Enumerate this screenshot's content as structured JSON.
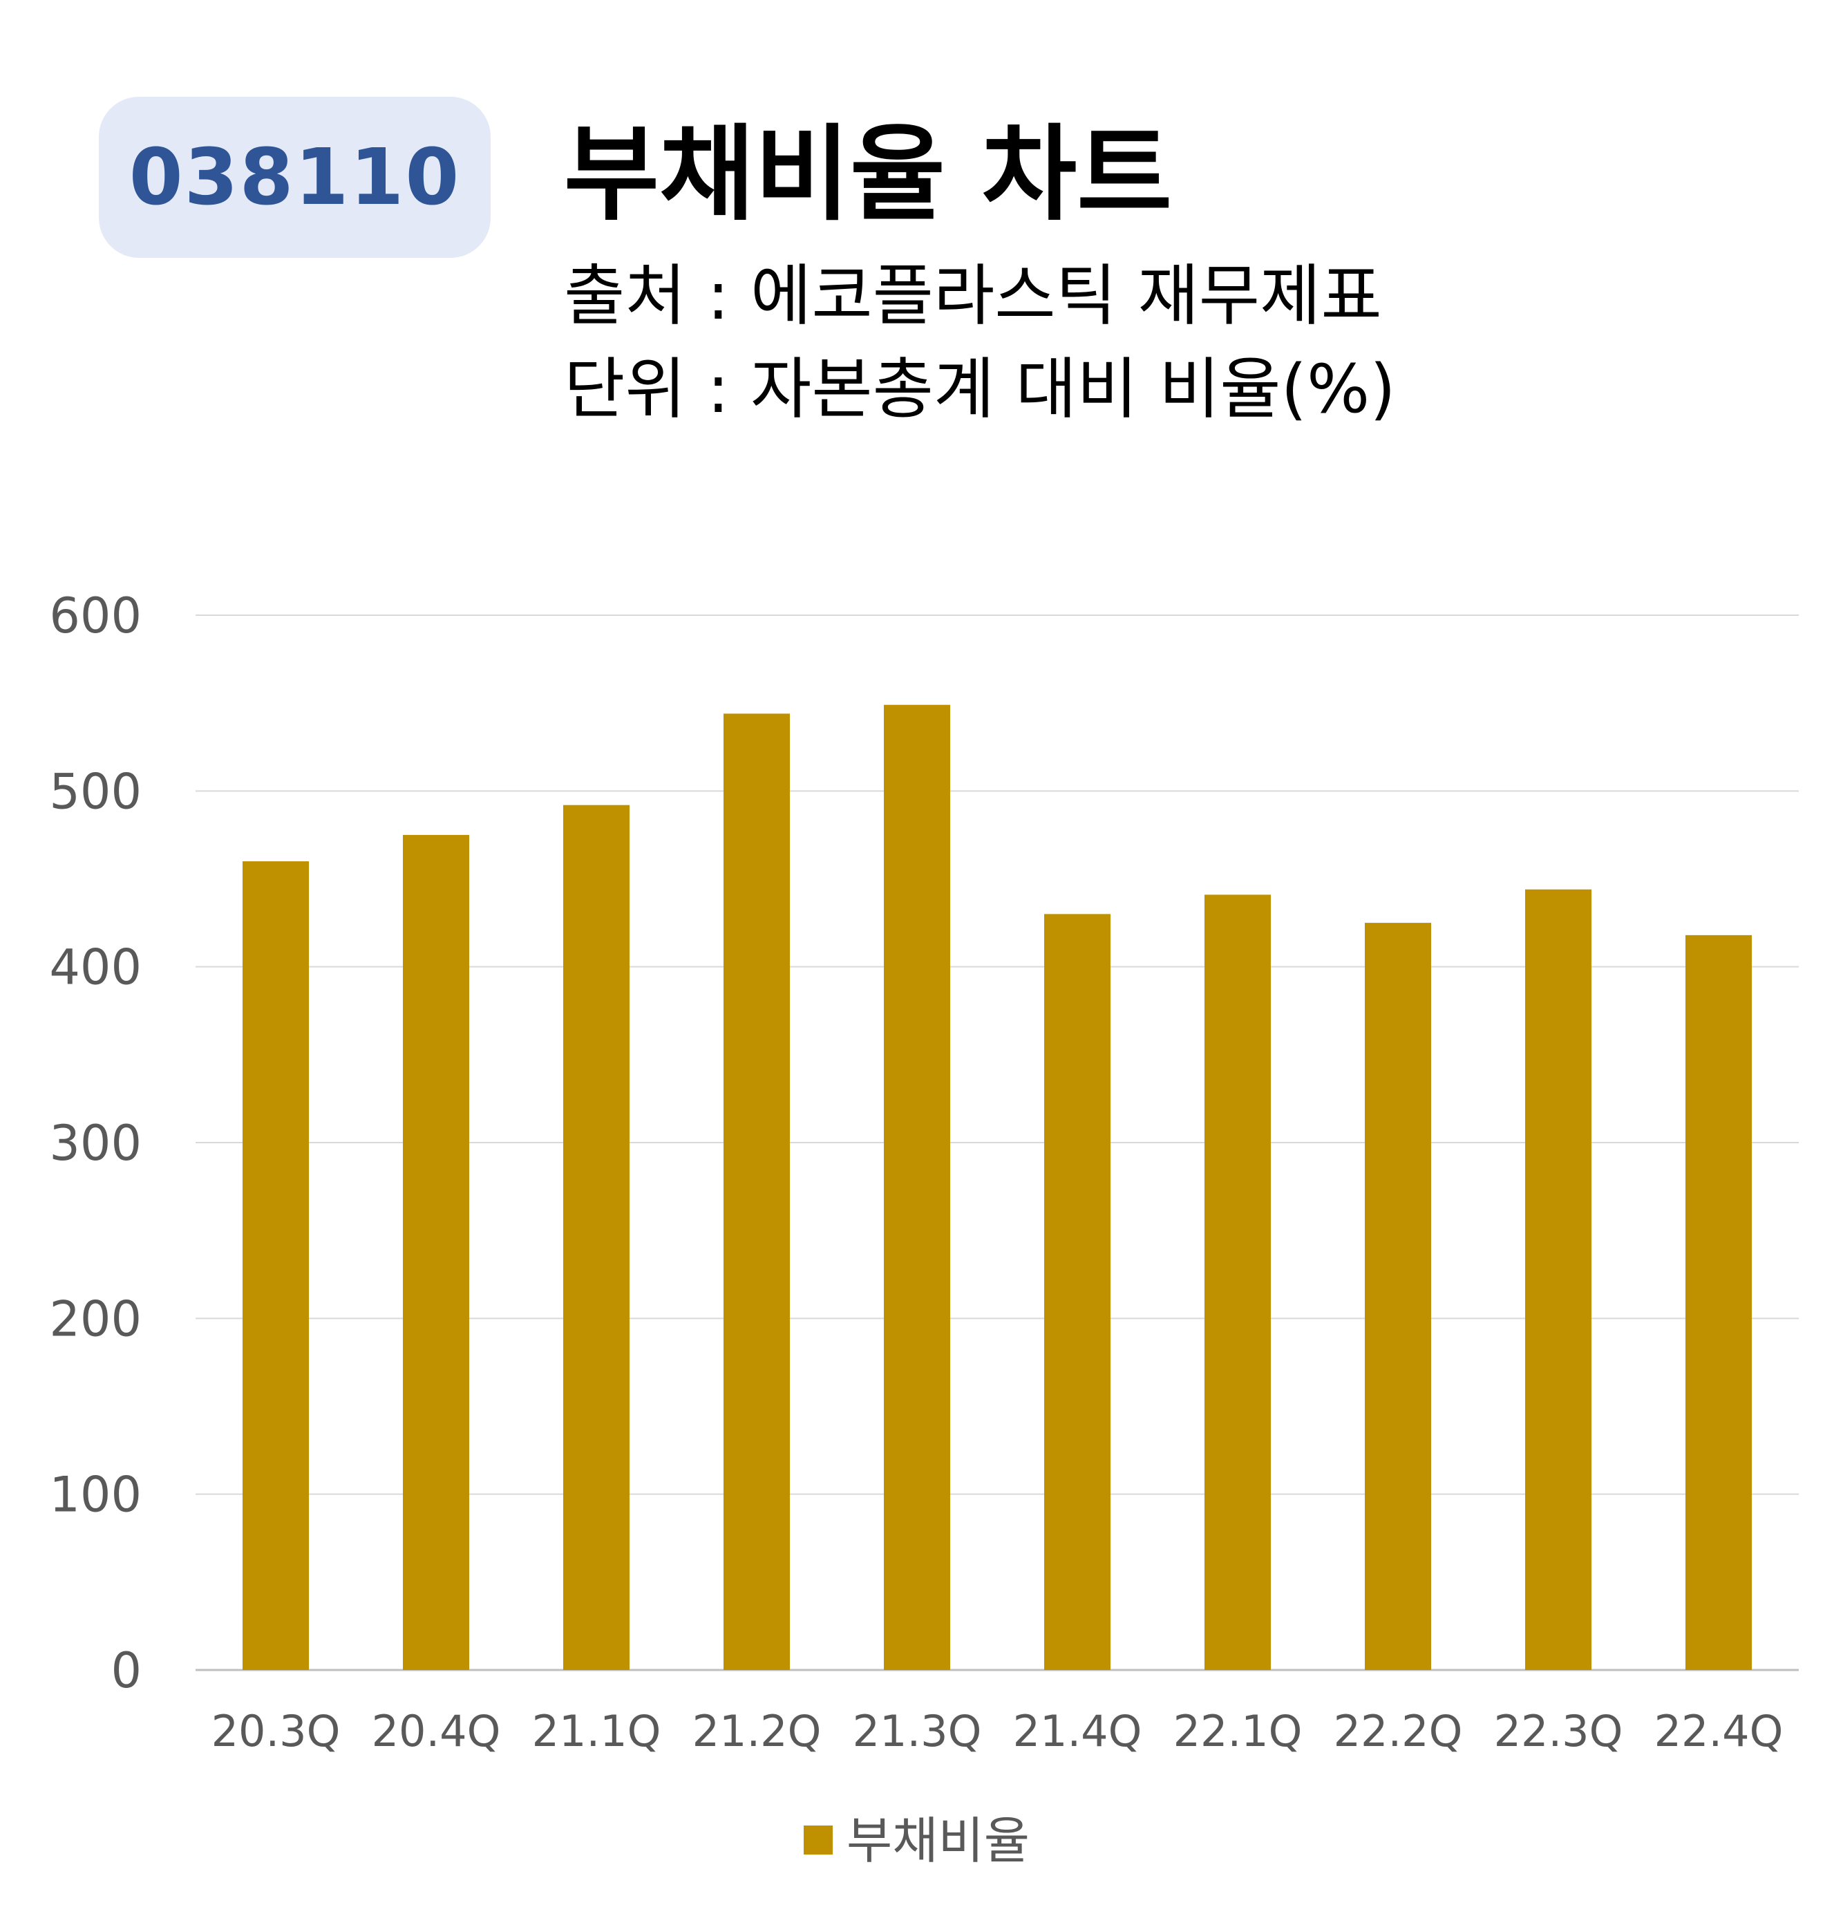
{
  "badge": {
    "code": "038110"
  },
  "header": {
    "title": "부채비율 차트",
    "source_line": "출처 : 에코플라스틱 재무제표",
    "unit_line": "단위 : 자본총계 대비 비율(%)"
  },
  "chart_data": {
    "type": "bar",
    "categories": [
      "20.3Q",
      "20.4Q",
      "21.1Q",
      "21.2Q",
      "21.3Q",
      "21.4Q",
      "22.1Q",
      "22.2Q",
      "22.3Q",
      "22.4Q"
    ],
    "series": [
      {
        "name": "부채비율",
        "values": [
          460,
          475,
          492,
          544,
          549,
          430,
          441,
          425,
          444,
          418
        ],
        "color": "#bf9000"
      }
    ],
    "ylim": [
      0,
      600
    ],
    "yticks": [
      0,
      100,
      200,
      300,
      400,
      500,
      600
    ],
    "grid": true,
    "legend_position": "bottom"
  }
}
